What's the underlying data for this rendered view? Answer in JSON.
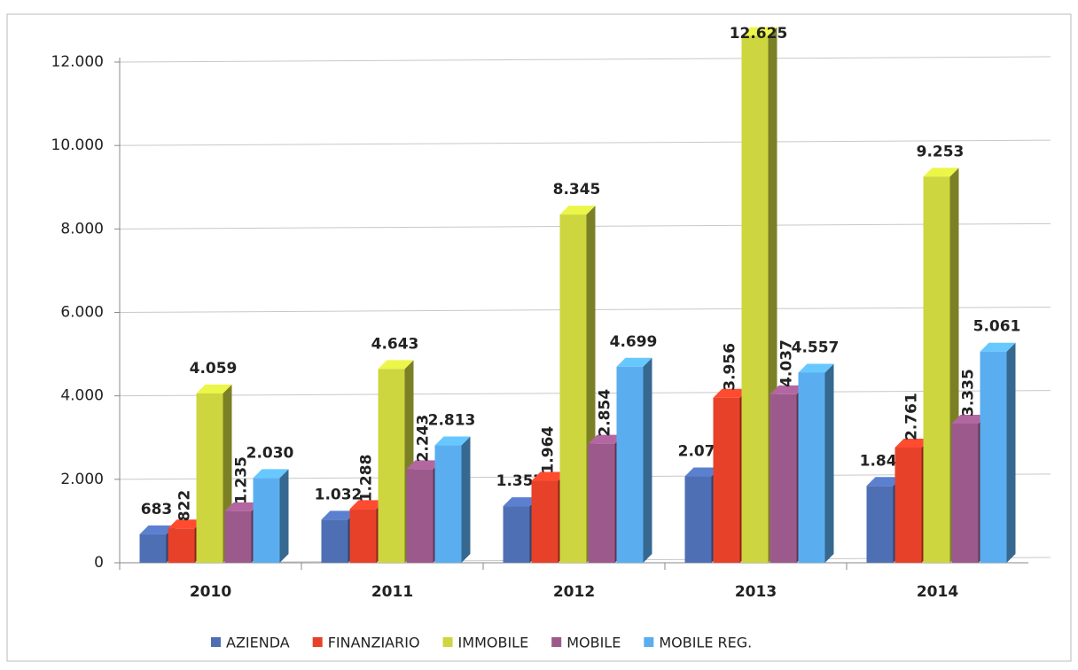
{
  "chart_data": {
    "type": "bar",
    "categories": [
      "2010",
      "2011",
      "2012",
      "2013",
      "2014"
    ],
    "series": [
      {
        "name": "AZIENDA",
        "color": "#4f6fb5",
        "values": [
          683,
          1032,
          1357,
          2070,
          1842
        ],
        "value_labels": [
          "683",
          "1.032",
          "1.357",
          "2.070",
          "1.842"
        ]
      },
      {
        "name": "FINANZIARIO",
        "color": "#e8412a",
        "values": [
          822,
          1288,
          1964,
          3956,
          2761
        ],
        "value_labels": [
          "822",
          "1.288",
          "1.964",
          "3.956",
          "2.761"
        ]
      },
      {
        "name": "IMMOBILE",
        "color": "#cdd63f",
        "values": [
          4059,
          4643,
          8345,
          12625,
          9253
        ],
        "value_labels": [
          "4.059",
          "4.643",
          "8.345",
          "12.625",
          "9.253"
        ]
      },
      {
        "name": "MOBILE",
        "color": "#9c5a8c",
        "values": [
          1235,
          2243,
          2854,
          4037,
          3335
        ],
        "value_labels": [
          "1.235",
          "2.243",
          "2.854",
          "4.037",
          "3.335"
        ]
      },
      {
        "name": "MOBILE REG.",
        "color": "#5aaef0",
        "values": [
          2030,
          2813,
          4699,
          4557,
          5061
        ],
        "value_labels": [
          "2.030",
          "2.813",
          "4.699",
          "4.557",
          "5.061"
        ]
      }
    ],
    "ylim": [
      0,
      12000
    ],
    "yticks": [
      0,
      {
        "value": 2000,
        "label": "2.000"
      },
      {
        "value": 4000,
        "label": "4.000"
      },
      {
        "value": 6000,
        "label": "6.000"
      },
      {
        "value": 8000,
        "label": "8.000"
      },
      {
        "value": 10000,
        "label": "10.000"
      },
      {
        "value": 12000,
        "label": "12.000"
      }
    ],
    "grid": true,
    "legend": "bottom"
  }
}
